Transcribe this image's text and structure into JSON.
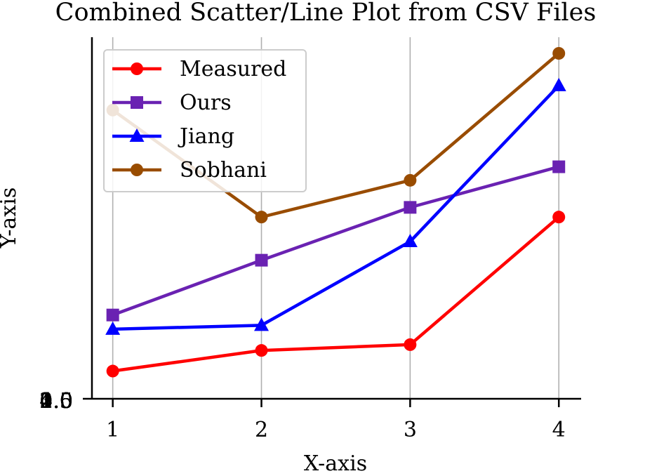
{
  "chart_data": {
    "type": "line",
    "title": "Combined Scatter/Line Plot from CSV Files",
    "xlabel": "X-axis",
    "ylabel": "Y-axis",
    "x": [
      1,
      2,
      3,
      4
    ],
    "x_ticks": [
      "1",
      "2",
      "3",
      "4"
    ],
    "y_ticks": [
      "0.0",
      "0.5",
      "1.0",
      "1.5",
      "2.0",
      "2.5",
      "3.0",
      "3.5",
      "4.0"
    ],
    "xlim": [
      0.86,
      4.15
    ],
    "ylim": [
      0,
      536
    ],
    "grid": "x-only",
    "legend_position": "top-left",
    "series": [
      {
        "name": "Measured",
        "color": "#ff0000",
        "marker": "circle",
        "values": [
          43,
          75,
          84,
          282
        ]
      },
      {
        "name": "Ours",
        "color": "#6a22b2",
        "marker": "square",
        "values": [
          130,
          215,
          297,
          360
        ]
      },
      {
        "name": "Jiang",
        "color": "#0000ff",
        "marker": "triangle",
        "values": [
          108,
          114,
          244,
          486
        ]
      },
      {
        "name": "Sobhani",
        "color": "#994c00",
        "marker": "circle",
        "values": [
          448,
          282,
          339,
          536
        ]
      }
    ]
  }
}
